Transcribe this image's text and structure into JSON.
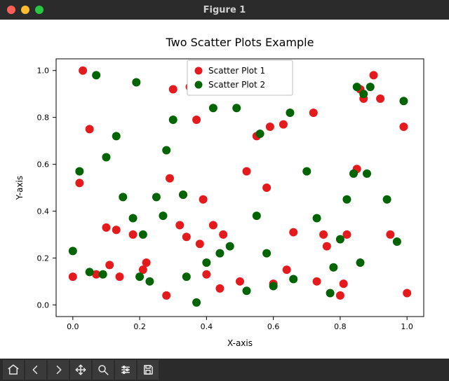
{
  "window": {
    "title": "Figure 1",
    "titlebar_bg": "#2b2b2b",
    "titlebar_fg": "#cfcfcf",
    "traffic_colors": [
      "#ff5f57",
      "#febc2e",
      "#28c840"
    ]
  },
  "chart": {
    "type": "scatter",
    "title": "Two Scatter Plots Example",
    "title_fontsize": 16,
    "xlabel": "X-axis",
    "ylabel": "Y-axis",
    "label_fontsize": 12,
    "tick_fontsize": 11,
    "xlim": [
      -0.05,
      1.05
    ],
    "ylim": [
      -0.05,
      1.05
    ],
    "xticks": [
      0.0,
      0.2,
      0.4,
      0.6,
      0.8,
      1.0
    ],
    "yticks": [
      0.0,
      0.2,
      0.4,
      0.6,
      0.8,
      1.0
    ],
    "background_color": "#ffffff",
    "axes_color": "#000000",
    "tick_color": "#000000",
    "marker_radius": 6,
    "grid": false,
    "legend": {
      "items": [
        {
          "label": "Scatter Plot 1",
          "color": "#e41a1c",
          "marker": "circle"
        },
        {
          "label": "Scatter Plot 2",
          "color": "#006400",
          "marker": "circle"
        }
      ],
      "position": "upper-center",
      "bg": "#ffffff",
      "border": "#bfbfbf",
      "fontsize": 12
    },
    "series": [
      {
        "name": "Scatter Plot 1",
        "color": "#e41a1c",
        "points": [
          [
            0.0,
            0.12
          ],
          [
            0.02,
            0.52
          ],
          [
            0.03,
            1.0
          ],
          [
            0.05,
            0.75
          ],
          [
            0.07,
            0.13
          ],
          [
            0.1,
            0.33
          ],
          [
            0.11,
            0.17
          ],
          [
            0.13,
            0.32
          ],
          [
            0.14,
            0.12
          ],
          [
            0.18,
            0.3
          ],
          [
            0.21,
            0.15
          ],
          [
            0.22,
            0.18
          ],
          [
            0.28,
            0.04
          ],
          [
            0.29,
            0.54
          ],
          [
            0.3,
            0.92
          ],
          [
            0.32,
            0.34
          ],
          [
            0.33,
            0.47
          ],
          [
            0.34,
            0.29
          ],
          [
            0.35,
            0.93
          ],
          [
            0.37,
            0.79
          ],
          [
            0.38,
            0.26
          ],
          [
            0.39,
            0.45
          ],
          [
            0.4,
            0.13
          ],
          [
            0.42,
            0.34
          ],
          [
            0.44,
            0.07
          ],
          [
            0.45,
            0.3
          ],
          [
            0.5,
            0.1
          ],
          [
            0.52,
            0.57
          ],
          [
            0.55,
            0.72
          ],
          [
            0.58,
            0.5
          ],
          [
            0.59,
            0.76
          ],
          [
            0.6,
            0.09
          ],
          [
            0.62,
            0.92
          ],
          [
            0.63,
            0.77
          ],
          [
            0.64,
            0.15
          ],
          [
            0.66,
            0.31
          ],
          [
            0.72,
            0.82
          ],
          [
            0.73,
            0.1
          ],
          [
            0.75,
            0.3
          ],
          [
            0.76,
            0.25
          ],
          [
            0.8,
            0.04
          ],
          [
            0.81,
            0.09
          ],
          [
            0.82,
            0.3
          ],
          [
            0.85,
            0.58
          ],
          [
            0.86,
            0.92
          ],
          [
            0.87,
            0.88
          ],
          [
            0.9,
            0.98
          ],
          [
            0.92,
            0.88
          ],
          [
            0.95,
            0.3
          ],
          [
            0.99,
            0.76
          ],
          [
            1.0,
            0.05
          ]
        ]
      },
      {
        "name": "Scatter Plot 2",
        "color": "#006400",
        "points": [
          [
            0.0,
            0.23
          ],
          [
            0.02,
            0.57
          ],
          [
            0.05,
            0.14
          ],
          [
            0.07,
            0.98
          ],
          [
            0.09,
            0.13
          ],
          [
            0.1,
            0.63
          ],
          [
            0.13,
            0.72
          ],
          [
            0.15,
            0.46
          ],
          [
            0.18,
            0.37
          ],
          [
            0.19,
            0.95
          ],
          [
            0.2,
            0.12
          ],
          [
            0.21,
            0.3
          ],
          [
            0.23,
            0.1
          ],
          [
            0.25,
            0.46
          ],
          [
            0.27,
            0.38
          ],
          [
            0.28,
            0.66
          ],
          [
            0.3,
            0.79
          ],
          [
            0.33,
            0.47
          ],
          [
            0.34,
            0.12
          ],
          [
            0.37,
            0.01
          ],
          [
            0.4,
            0.18
          ],
          [
            0.42,
            0.84
          ],
          [
            0.44,
            0.22
          ],
          [
            0.47,
            0.25
          ],
          [
            0.49,
            0.84
          ],
          [
            0.52,
            0.06
          ],
          [
            0.55,
            0.38
          ],
          [
            0.56,
            0.73
          ],
          [
            0.58,
            0.22
          ],
          [
            0.6,
            0.08
          ],
          [
            0.65,
            0.82
          ],
          [
            0.66,
            0.11
          ],
          [
            0.7,
            0.57
          ],
          [
            0.73,
            0.37
          ],
          [
            0.77,
            0.05
          ],
          [
            0.78,
            0.16
          ],
          [
            0.8,
            0.28
          ],
          [
            0.82,
            0.45
          ],
          [
            0.84,
            0.56
          ],
          [
            0.85,
            0.93
          ],
          [
            0.86,
            0.18
          ],
          [
            0.87,
            0.9
          ],
          [
            0.88,
            0.56
          ],
          [
            0.89,
            0.93
          ],
          [
            0.94,
            0.45
          ],
          [
            0.97,
            0.27
          ],
          [
            0.99,
            0.87
          ]
        ]
      }
    ]
  },
  "toolbar": {
    "bg": "#2b2b2b",
    "btn_bg": "#3a3a3a",
    "icon_color": "#e6e6e6",
    "buttons": [
      {
        "name": "home",
        "title": "Home"
      },
      {
        "name": "back",
        "title": "Back"
      },
      {
        "name": "forward",
        "title": "Forward"
      },
      {
        "name": "pan",
        "title": "Pan"
      },
      {
        "name": "zoom",
        "title": "Zoom"
      },
      {
        "name": "config",
        "title": "Configure subplots"
      },
      {
        "name": "save",
        "title": "Save"
      }
    ]
  }
}
